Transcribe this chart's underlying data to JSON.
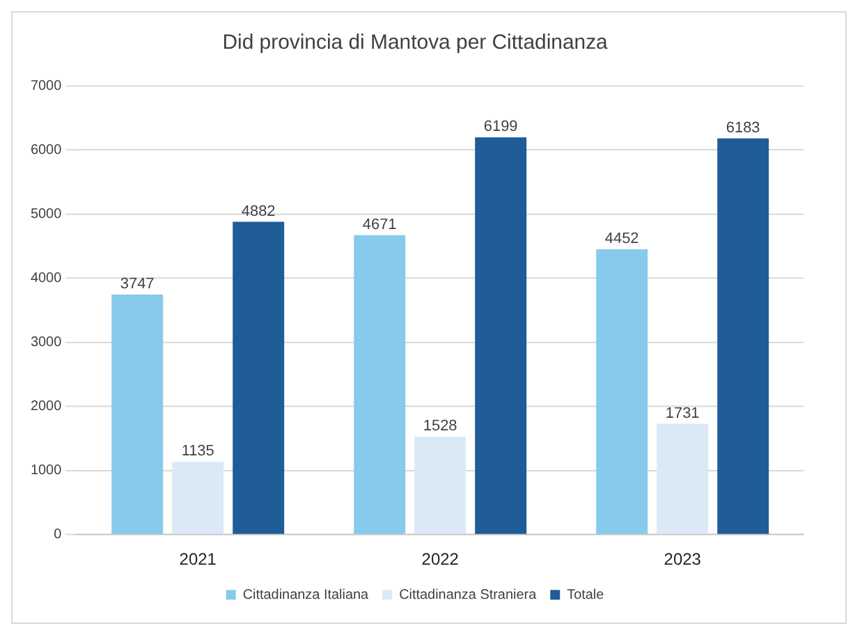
{
  "chart_data": {
    "type": "bar",
    "title": "Did provincia di Mantova per Cittadinanza",
    "categories": [
      "2021",
      "2022",
      "2023"
    ],
    "series": [
      {
        "name": "Cittadinanza Italiana",
        "color": "#86cbeb",
        "values": [
          3747,
          4671,
          4452
        ]
      },
      {
        "name": "Cittadinanza Straniera",
        "color": "#dbe9f7",
        "values": [
          1135,
          1528,
          1731
        ]
      },
      {
        "name": "Totale",
        "color": "#1f5c98",
        "values": [
          4882,
          6199,
          6183
        ]
      }
    ],
    "ylim": [
      0,
      7000
    ],
    "yticks": [
      0,
      1000,
      2000,
      3000,
      4000,
      5000,
      6000,
      7000
    ],
    "grid": "y",
    "legend": "bottom",
    "data_labels": true
  }
}
